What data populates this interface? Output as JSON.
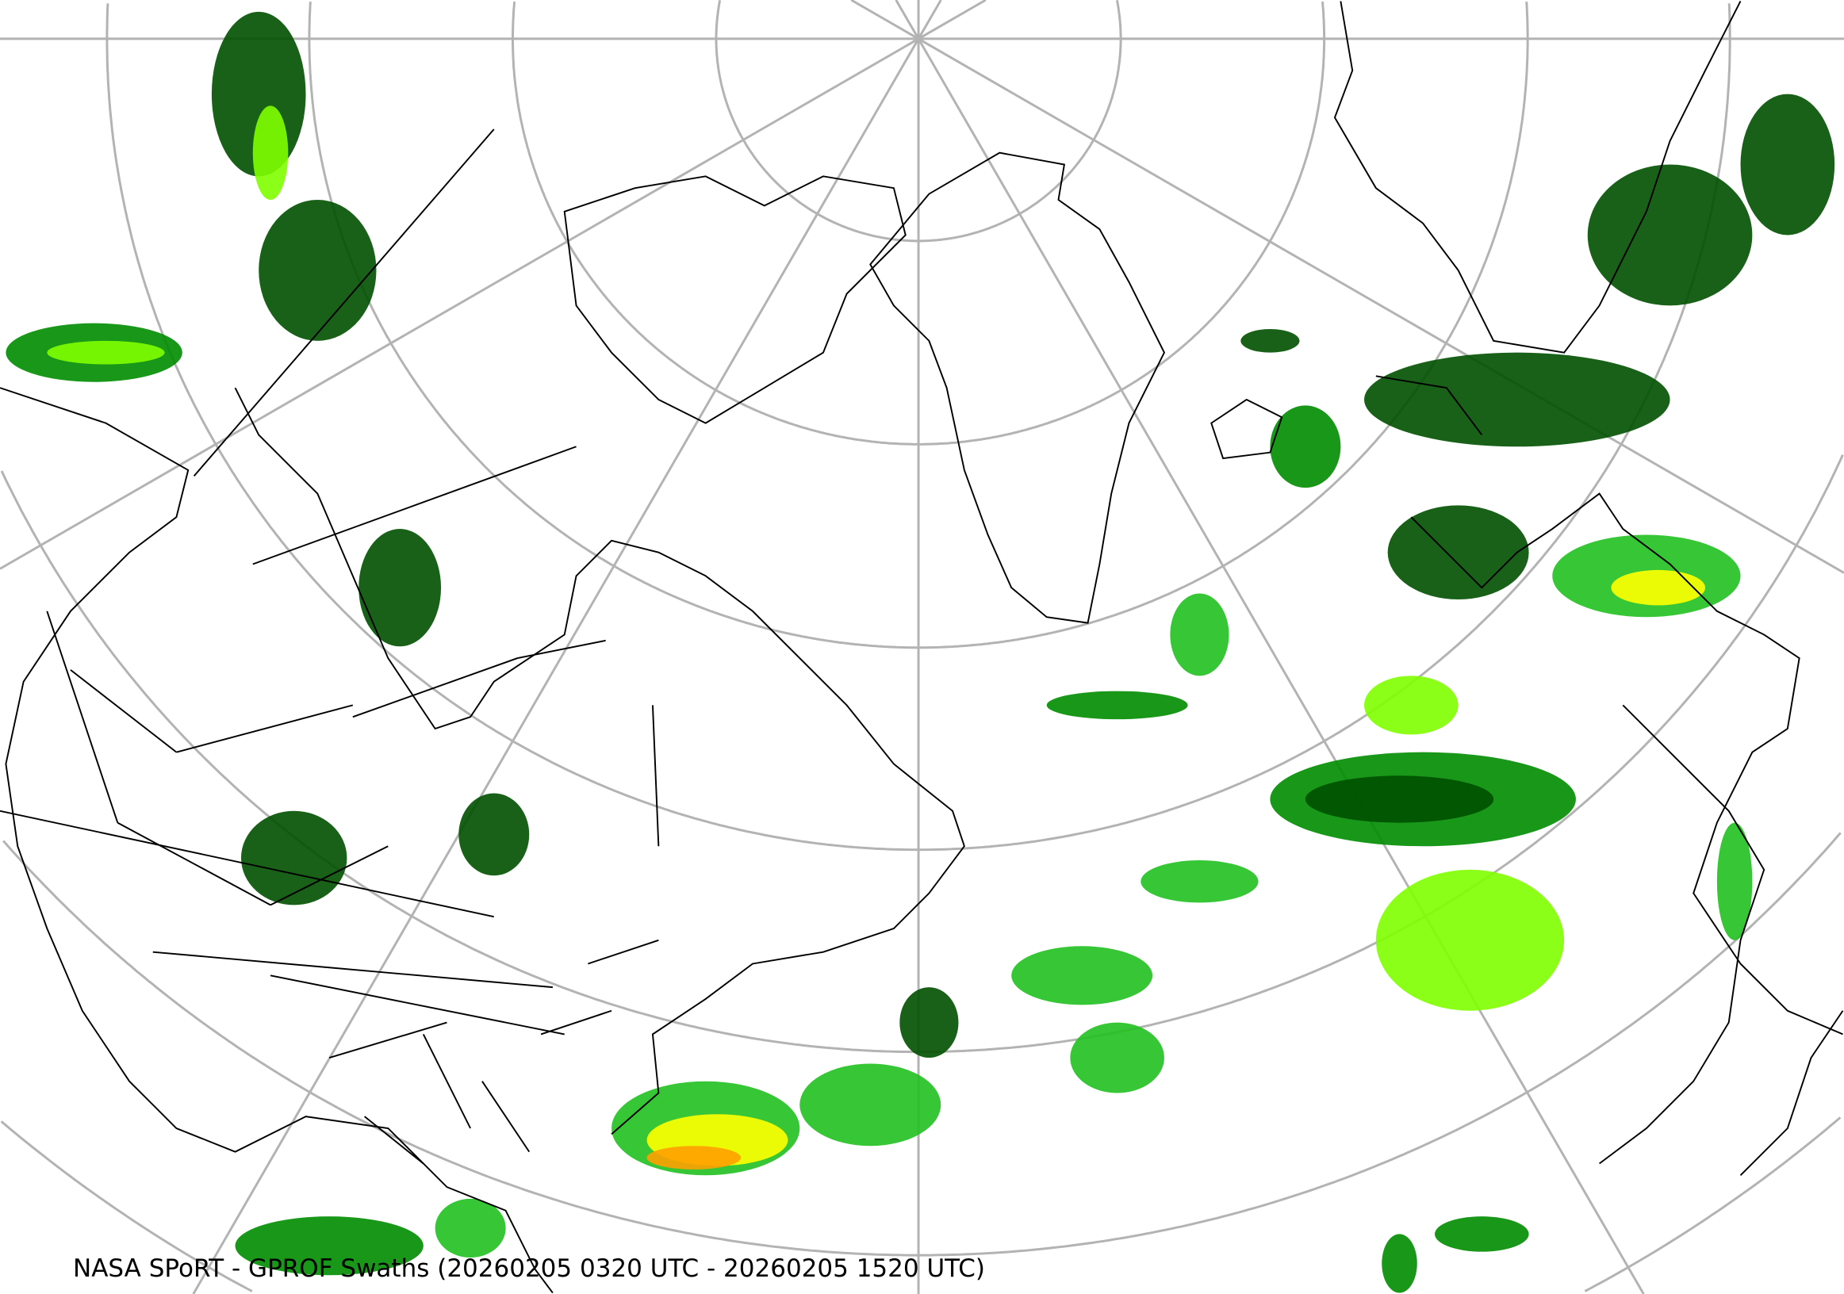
{
  "caption": "NASA SPoRT - GPROF Swaths (20260205 0320 UTC - 20260205 1520 UTC)",
  "map": {
    "projection": "north-polar-stereographic",
    "graticule_color": "#b3b3b3",
    "coastline_color": "#000000",
    "background": "#ffffff",
    "precip_colors": [
      "#005000",
      "#008c00",
      "#20c020",
      "#80ff00",
      "#ffff00",
      "#ffa000",
      "#ff4000"
    ]
  }
}
